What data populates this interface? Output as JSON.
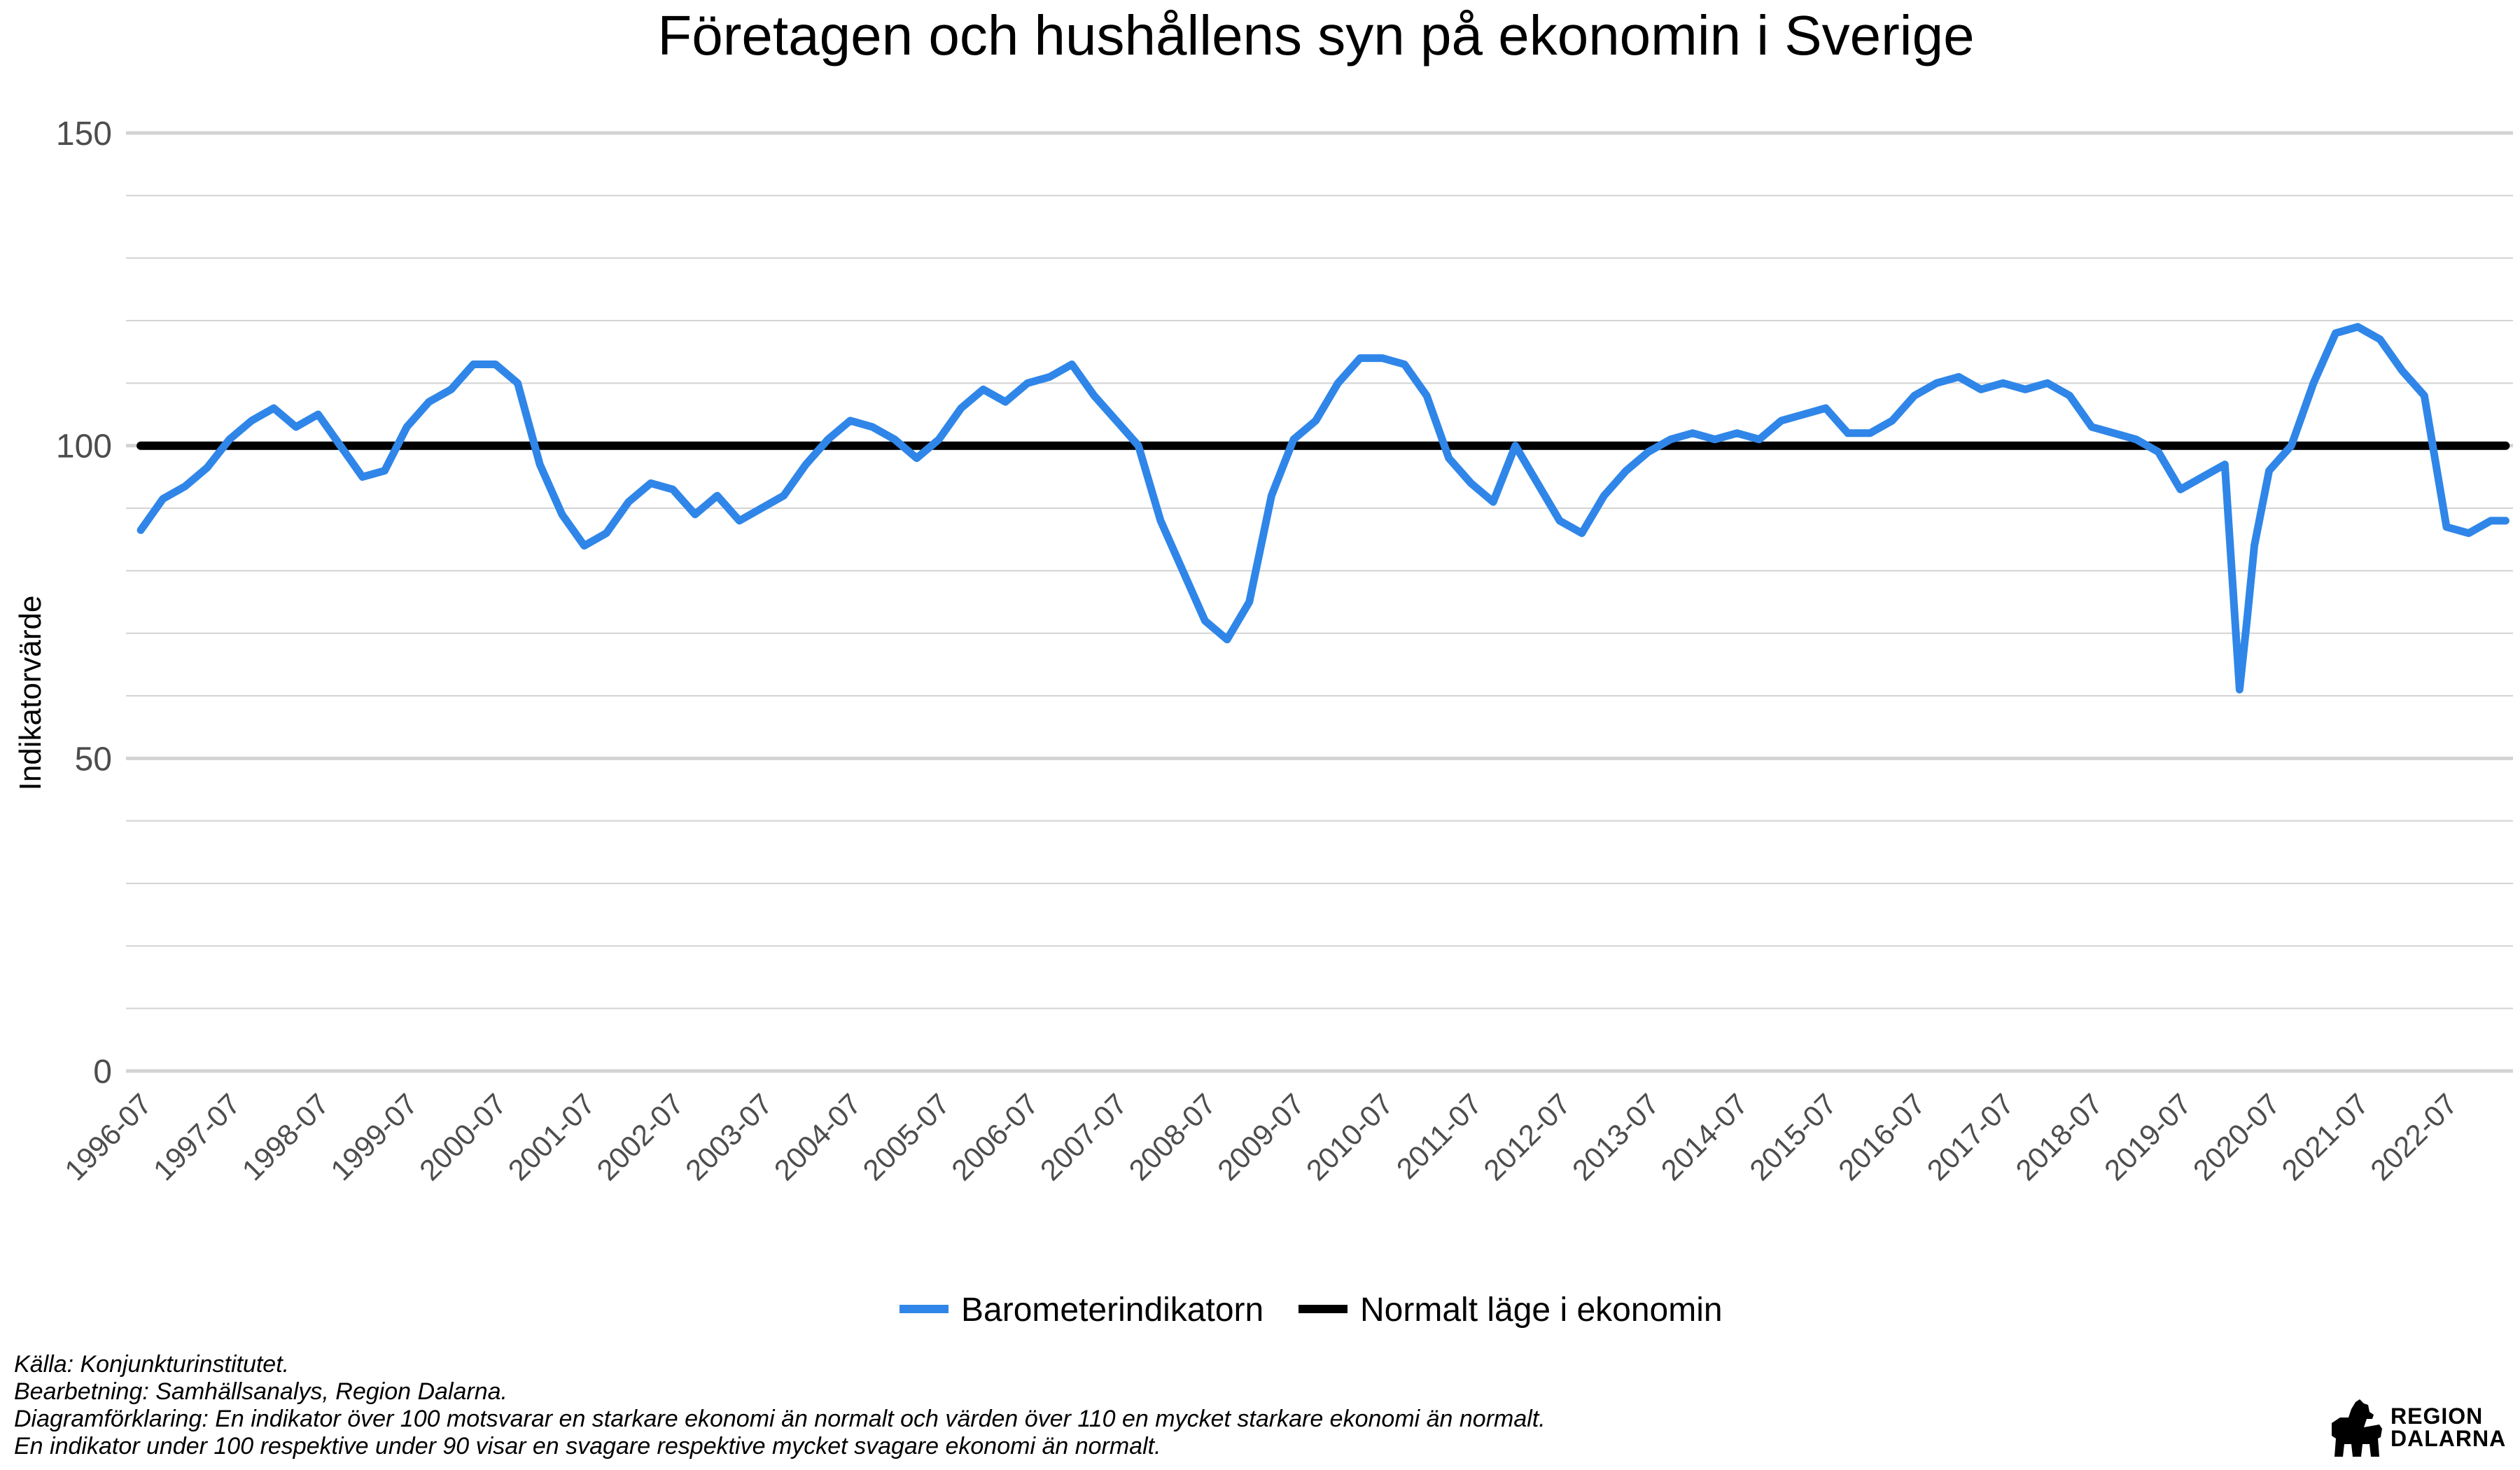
{
  "chart_data": {
    "type": "line",
    "title": "Företagen och hushållens syn på ekonomin i Sverige",
    "xlabel": "",
    "ylabel": "Indikatorvärde",
    "ylim": [
      0,
      150
    ],
    "yticks": [
      0,
      50,
      100,
      150
    ],
    "xlim": [
      "1996-07",
      "2023-03"
    ],
    "xticks": [
      "1996-07",
      "1997-07",
      "1998-07",
      "1999-07",
      "2000-07",
      "2001-07",
      "2002-07",
      "2003-07",
      "2004-07",
      "2005-07",
      "2006-07",
      "2007-07",
      "2008-07",
      "2009-07",
      "2010-07",
      "2011-07",
      "2012-07",
      "2013-07",
      "2014-07",
      "2015-07",
      "2016-07",
      "2017-07",
      "2018-07",
      "2019-07",
      "2020-07",
      "2021-07",
      "2022-07"
    ],
    "grid": true,
    "legend_position": "bottom",
    "colors": {
      "barometer": "#2f86e8",
      "normal": "#000000",
      "grid": "#d3d3d3"
    },
    "series": [
      {
        "name": "Barometerindikatorn",
        "x": [
          "1996-07",
          "1996-10",
          "1997-01",
          "1997-04",
          "1997-07",
          "1997-10",
          "1998-01",
          "1998-04",
          "1998-07",
          "1998-10",
          "1999-01",
          "1999-04",
          "1999-07",
          "1999-10",
          "2000-01",
          "2000-04",
          "2000-07",
          "2000-10",
          "2001-01",
          "2001-04",
          "2001-07",
          "2001-10",
          "2002-01",
          "2002-04",
          "2002-07",
          "2002-10",
          "2003-01",
          "2003-04",
          "2003-07",
          "2003-10",
          "2004-01",
          "2004-04",
          "2004-07",
          "2004-10",
          "2005-01",
          "2005-04",
          "2005-07",
          "2005-10",
          "2006-01",
          "2006-04",
          "2006-07",
          "2006-10",
          "2007-01",
          "2007-04",
          "2007-07",
          "2007-10",
          "2008-01",
          "2008-04",
          "2008-07",
          "2008-10",
          "2009-01",
          "2009-04",
          "2009-07",
          "2009-10",
          "2010-01",
          "2010-04",
          "2010-07",
          "2010-10",
          "2011-01",
          "2011-04",
          "2011-07",
          "2011-10",
          "2012-01",
          "2012-04",
          "2012-07",
          "2012-10",
          "2013-01",
          "2013-04",
          "2013-07",
          "2013-10",
          "2014-01",
          "2014-04",
          "2014-07",
          "2014-10",
          "2015-01",
          "2015-04",
          "2015-07",
          "2015-10",
          "2016-01",
          "2016-04",
          "2016-07",
          "2016-10",
          "2017-01",
          "2017-04",
          "2017-07",
          "2017-10",
          "2018-01",
          "2018-04",
          "2018-07",
          "2018-10",
          "2019-01",
          "2019-04",
          "2019-07",
          "2019-10",
          "2020-01",
          "2020-03",
          "2020-04",
          "2020-05",
          "2020-07",
          "2020-10",
          "2021-01",
          "2021-04",
          "2021-07",
          "2021-10",
          "2022-01",
          "2022-04",
          "2022-07",
          "2022-10",
          "2023-01",
          "2023-03"
        ],
        "values": [
          86.5,
          91.5,
          93.5,
          96.5,
          101,
          104,
          106,
          103,
          105,
          100,
          95,
          96,
          103,
          107,
          109,
          113,
          113,
          110,
          97,
          89,
          84,
          86,
          91,
          94,
          93,
          89,
          92,
          88,
          90,
          92,
          97,
          101,
          104,
          103,
          101,
          98,
          101,
          106,
          109,
          107,
          110,
          111,
          113,
          108,
          104,
          100,
          88,
          80,
          72,
          69,
          75,
          92,
          101,
          104,
          110,
          114,
          114,
          113,
          108,
          98,
          94,
          91,
          100,
          94,
          88,
          86,
          92,
          96,
          99,
          101,
          102,
          101,
          102,
          101,
          104,
          105,
          106,
          102,
          102,
          104,
          108,
          110,
          111,
          109,
          110,
          109,
          110,
          108,
          103,
          102,
          101,
          99,
          93,
          95,
          97,
          61,
          72,
          84,
          96,
          100,
          110,
          118,
          119,
          117,
          112,
          108,
          87,
          86,
          88,
          88
        ],
        "color": "#2f86e8"
      },
      {
        "name": "Normalt läge i ekonomin",
        "x": [
          "1996-07",
          "2023-03"
        ],
        "values": [
          100,
          100
        ],
        "color": "#000000"
      }
    ],
    "notes": [
      "Källa: Konjunkturinstitutet.",
      "Bearbetning: Samhällsanalys, Region Dalarna.",
      "Diagramförklaring: En indikator över 100 motsvarar en starkare ekonomi än normalt och värden över 110 en mycket starkare ekonomi än normalt.",
      "En indikator under 100 respektive under 90 visar en svagare respektive mycket svagare ekonomi än normalt."
    ]
  },
  "logo": {
    "line1": "REGION",
    "line2": "DALARNA"
  }
}
